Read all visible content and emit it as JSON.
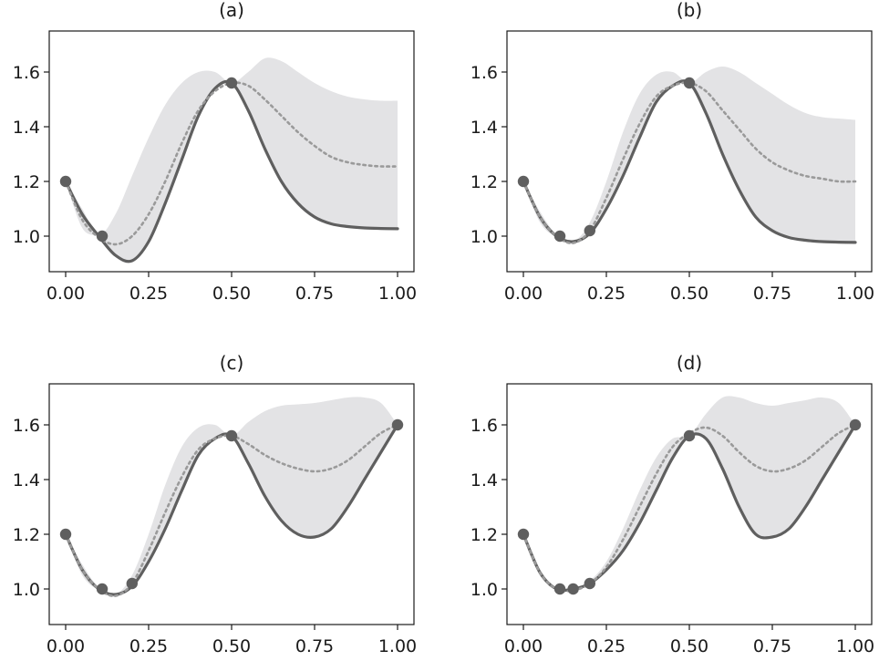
{
  "colors": {
    "band": "#e3e3e5",
    "true_line": "#5f5f5f",
    "mean_line": "#9a9a9a",
    "points": "#5f5f5f",
    "axes": "#1a1a1a"
  },
  "chart_data": [
    {
      "type": "line",
      "title": "(a)",
      "xlim": [
        0,
        1
      ],
      "ylim": [
        0.87,
        1.75
      ],
      "xticks": [
        "0.00",
        "0.25",
        "0.50",
        "0.75",
        "1.00"
      ],
      "yticks": [
        "1.0",
        "1.2",
        "1.4",
        "1.6"
      ],
      "x": [
        0,
        0.05,
        0.1,
        0.15,
        0.2,
        0.25,
        0.3,
        0.35,
        0.4,
        0.45,
        0.5,
        0.55,
        0.6,
        0.65,
        0.7,
        0.75,
        0.8,
        0.85,
        0.9,
        0.95,
        1.0
      ],
      "series": [
        {
          "role": "true",
          "values": [
            1.2,
            1.08,
            1.0,
            0.93,
            0.91,
            0.98,
            1.12,
            1.28,
            1.44,
            1.54,
            1.56,
            1.46,
            1.32,
            1.2,
            1.12,
            1.07,
            1.045,
            1.035,
            1.03,
            1.028,
            1.027
          ]
        },
        {
          "role": "mean",
          "values": [
            1.2,
            1.06,
            0.995,
            0.97,
            1.0,
            1.08,
            1.2,
            1.34,
            1.46,
            1.53,
            1.56,
            1.55,
            1.5,
            1.44,
            1.38,
            1.33,
            1.29,
            1.27,
            1.26,
            1.255,
            1.255
          ]
        },
        {
          "role": "upper",
          "values": [
            1.2,
            1.1,
            1.005,
            1.08,
            1.22,
            1.36,
            1.48,
            1.56,
            1.6,
            1.6,
            1.56,
            1.6,
            1.65,
            1.64,
            1.6,
            1.56,
            1.53,
            1.51,
            1.5,
            1.495,
            1.495
          ]
        },
        {
          "role": "lower",
          "values": [
            1.2,
            1.03,
            0.995,
            0.93,
            0.91,
            0.98,
            1.12,
            1.28,
            1.44,
            1.54,
            1.56,
            1.46,
            1.32,
            1.2,
            1.12,
            1.07,
            1.045,
            1.035,
            1.03,
            1.028,
            1.027
          ]
        }
      ],
      "points": [
        [
          0,
          1.2
        ],
        [
          0.11,
          1.0
        ],
        [
          0.5,
          1.56
        ]
      ]
    },
    {
      "type": "line",
      "title": "(b)",
      "xlim": [
        0,
        1
      ],
      "ylim": [
        0.87,
        1.75
      ],
      "xticks": [
        "0.00",
        "0.25",
        "0.50",
        "0.75",
        "1.00"
      ],
      "yticks": [
        "1.0",
        "1.2",
        "1.4",
        "1.6"
      ],
      "x": [
        0,
        0.05,
        0.1,
        0.15,
        0.2,
        0.25,
        0.3,
        0.35,
        0.4,
        0.45,
        0.5,
        0.55,
        0.6,
        0.65,
        0.7,
        0.75,
        0.8,
        0.85,
        0.9,
        0.95,
        1.0
      ],
      "series": [
        {
          "role": "true",
          "values": [
            1.2,
            1.07,
            1.0,
            0.98,
            1.01,
            1.1,
            1.22,
            1.36,
            1.49,
            1.55,
            1.56,
            1.45,
            1.3,
            1.17,
            1.07,
            1.02,
            0.995,
            0.985,
            0.98,
            0.978,
            0.977
          ]
        },
        {
          "role": "mean",
          "values": [
            1.2,
            1.07,
            1.0,
            0.975,
            1.02,
            1.14,
            1.28,
            1.41,
            1.51,
            1.55,
            1.56,
            1.53,
            1.46,
            1.39,
            1.32,
            1.27,
            1.24,
            1.22,
            1.21,
            1.2,
            1.2
          ]
        },
        {
          "role": "upper",
          "values": [
            1.2,
            1.09,
            1.005,
            0.98,
            1.05,
            1.2,
            1.38,
            1.52,
            1.59,
            1.6,
            1.56,
            1.6,
            1.62,
            1.6,
            1.56,
            1.52,
            1.48,
            1.45,
            1.435,
            1.43,
            1.425
          ]
        },
        {
          "role": "lower",
          "values": [
            1.2,
            1.05,
            0.995,
            0.97,
            1.01,
            1.1,
            1.22,
            1.36,
            1.49,
            1.55,
            1.56,
            1.45,
            1.3,
            1.17,
            1.07,
            1.02,
            0.995,
            0.985,
            0.98,
            0.978,
            0.977
          ]
        }
      ],
      "points": [
        [
          0,
          1.2
        ],
        [
          0.11,
          1.0
        ],
        [
          0.2,
          1.02
        ],
        [
          0.5,
          1.56
        ]
      ]
    },
    {
      "type": "line",
      "title": "(c)",
      "xlim": [
        0,
        1
      ],
      "ylim": [
        0.87,
        1.75
      ],
      "xticks": [
        "0.00",
        "0.25",
        "0.50",
        "0.75",
        "1.00"
      ],
      "yticks": [
        "1.0",
        "1.2",
        "1.4",
        "1.6"
      ],
      "x": [
        0,
        0.05,
        0.1,
        0.15,
        0.2,
        0.25,
        0.3,
        0.35,
        0.4,
        0.45,
        0.5,
        0.55,
        0.6,
        0.65,
        0.7,
        0.75,
        0.8,
        0.85,
        0.9,
        0.95,
        1.0
      ],
      "series": [
        {
          "role": "true",
          "values": [
            1.2,
            1.07,
            1.0,
            0.98,
            1.01,
            1.1,
            1.22,
            1.36,
            1.49,
            1.55,
            1.56,
            1.46,
            1.34,
            1.25,
            1.2,
            1.19,
            1.22,
            1.3,
            1.4,
            1.5,
            1.6
          ]
        },
        {
          "role": "mean",
          "values": [
            1.2,
            1.07,
            1.0,
            0.975,
            1.02,
            1.14,
            1.28,
            1.41,
            1.51,
            1.55,
            1.56,
            1.53,
            1.49,
            1.46,
            1.44,
            1.43,
            1.44,
            1.47,
            1.52,
            1.57,
            1.6
          ]
        },
        {
          "role": "upper",
          "values": [
            1.2,
            1.09,
            1.005,
            0.98,
            1.05,
            1.2,
            1.38,
            1.52,
            1.59,
            1.6,
            1.56,
            1.61,
            1.65,
            1.67,
            1.675,
            1.68,
            1.69,
            1.7,
            1.7,
            1.68,
            1.6
          ]
        },
        {
          "role": "lower",
          "values": [
            1.2,
            1.05,
            0.995,
            0.97,
            1.01,
            1.1,
            1.22,
            1.36,
            1.49,
            1.55,
            1.56,
            1.46,
            1.34,
            1.25,
            1.2,
            1.19,
            1.22,
            1.3,
            1.4,
            1.5,
            1.6
          ]
        }
      ],
      "points": [
        [
          0,
          1.2
        ],
        [
          0.11,
          1.0
        ],
        [
          0.2,
          1.02
        ],
        [
          0.5,
          1.56
        ],
        [
          1.0,
          1.6
        ]
      ]
    },
    {
      "type": "line",
      "title": "(d)",
      "xlim": [
        0,
        1
      ],
      "ylim": [
        0.87,
        1.75
      ],
      "xticks": [
        "0.00",
        "0.25",
        "0.50",
        "0.75",
        "1.00"
      ],
      "yticks": [
        "1.0",
        "1.2",
        "1.4",
        "1.6"
      ],
      "x": [
        0,
        0.05,
        0.1,
        0.15,
        0.2,
        0.25,
        0.3,
        0.35,
        0.4,
        0.45,
        0.5,
        0.55,
        0.6,
        0.65,
        0.7,
        0.75,
        0.8,
        0.85,
        0.9,
        0.95,
        1.0
      ],
      "series": [
        {
          "role": "true",
          "values": [
            1.2,
            1.06,
            1.0,
            1.0,
            1.02,
            1.07,
            1.14,
            1.24,
            1.36,
            1.48,
            1.56,
            1.55,
            1.44,
            1.3,
            1.2,
            1.19,
            1.22,
            1.3,
            1.4,
            1.5,
            1.6
          ]
        },
        {
          "role": "mean",
          "values": [
            1.2,
            1.06,
            1.0,
            0.995,
            1.02,
            1.08,
            1.18,
            1.3,
            1.42,
            1.52,
            1.57,
            1.59,
            1.56,
            1.5,
            1.45,
            1.43,
            1.44,
            1.47,
            1.52,
            1.57,
            1.6
          ]
        },
        {
          "role": "upper",
          "values": [
            1.2,
            1.06,
            1.0,
            1.0,
            1.03,
            1.1,
            1.22,
            1.36,
            1.48,
            1.55,
            1.56,
            1.64,
            1.7,
            1.7,
            1.68,
            1.67,
            1.68,
            1.69,
            1.7,
            1.68,
            1.6
          ]
        },
        {
          "role": "lower",
          "values": [
            1.2,
            1.06,
            1.0,
            1.0,
            1.02,
            1.07,
            1.14,
            1.24,
            1.36,
            1.48,
            1.56,
            1.55,
            1.44,
            1.3,
            1.2,
            1.19,
            1.22,
            1.3,
            1.4,
            1.5,
            1.6
          ]
        }
      ],
      "points": [
        [
          0,
          1.2
        ],
        [
          0.11,
          1.0
        ],
        [
          0.15,
          1.0
        ],
        [
          0.2,
          1.02
        ],
        [
          0.5,
          1.56
        ],
        [
          1.0,
          1.6
        ]
      ]
    }
  ]
}
